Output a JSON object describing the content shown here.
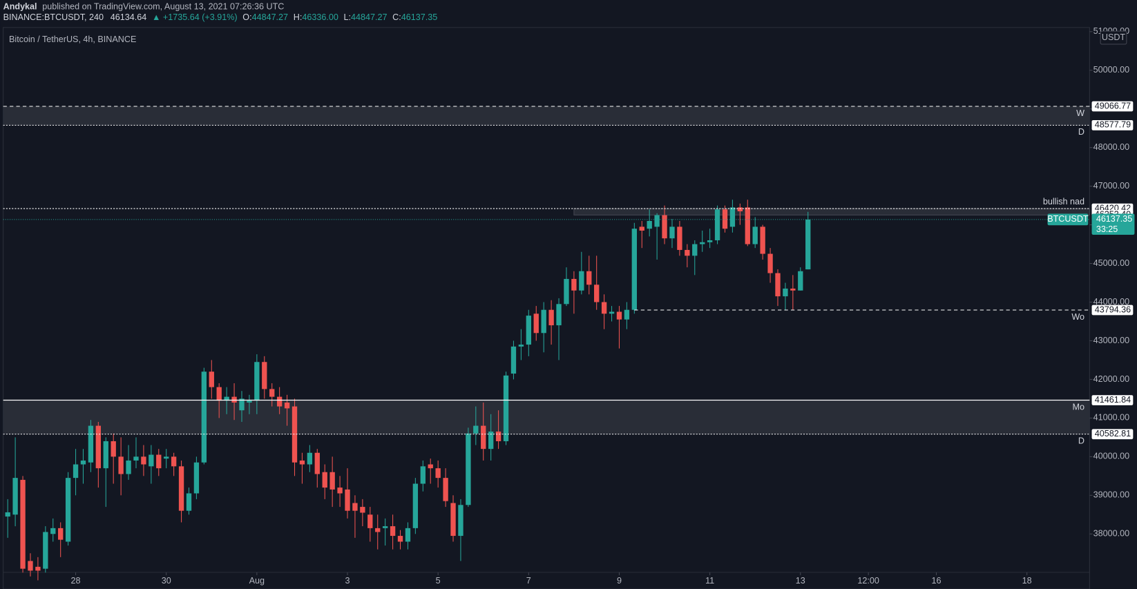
{
  "header": {
    "author": "Andykal",
    "published": "published on TradingView.com, August 13, 2021 07:26:36 UTC",
    "symbol": "BINANCE:BTCUSDT, 240",
    "last": "46134.64",
    "change": "▲ +1735.64 (+3.91%)",
    "o_label": "O:",
    "o": "44847.27",
    "h_label": "H:",
    "h": "46336.00",
    "l_label": "L:",
    "l": "44847.27",
    "c_label": "C:",
    "c": "46137.35"
  },
  "chart_data": {
    "type": "candlestick",
    "title": "Bitcoin / TetherUS, 4h, BINANCE",
    "currency": "USDT",
    "up_color": "#26a69a",
    "down_color": "#ef5350",
    "xlim": [
      -0.6,
      143.3
    ],
    "xticks": [
      {
        "value": 9,
        "label": "28"
      },
      {
        "value": 21,
        "label": "30"
      },
      {
        "value": 33,
        "label": "Aug"
      },
      {
        "value": 45,
        "label": "3"
      },
      {
        "value": 57,
        "label": "5"
      },
      {
        "value": 69,
        "label": "7"
      },
      {
        "value": 81,
        "label": "9"
      },
      {
        "value": 93,
        "label": "11"
      },
      {
        "value": 105,
        "label": "13"
      },
      {
        "value": 114,
        "label": "12:00"
      },
      {
        "value": 123,
        "label": "16"
      },
      {
        "value": 135,
        "label": "18"
      }
    ],
    "ylim": [
      36575,
      51106
    ],
    "yticks": [
      {
        "value": 38000,
        "label": "38000.00"
      },
      {
        "value": 39000,
        "label": "39000.00"
      },
      {
        "value": 40000,
        "label": "40000.00"
      },
      {
        "value": 41000,
        "label": "41000.00"
      },
      {
        "value": 42000,
        "label": "42000.00"
      },
      {
        "value": 43000,
        "label": "43000.00"
      },
      {
        "value": 44000,
        "label": "44000.00"
      },
      {
        "value": 45000,
        "label": "45000.00"
      },
      {
        "value": 46000,
        "label": "46000.00"
      },
      {
        "value": 47000,
        "label": "47000.00"
      },
      {
        "value": 48000,
        "label": "48000.00"
      },
      {
        "value": 49000,
        "label": "49000.00"
      },
      {
        "value": 50000,
        "label": "50000.00"
      },
      {
        "value": 51000,
        "label": "51000.00"
      }
    ],
    "levels": [
      {
        "value": 49066.77,
        "label": "49066.77",
        "note": "W",
        "style": "dashed",
        "zone_to_next": true
      },
      {
        "value": 48577.79,
        "label": "48577.79",
        "note": "D",
        "style": "dotted"
      },
      {
        "value": 46420.42,
        "label": "46420.42",
        "note": "bullish nad",
        "note_side": "above",
        "style": "dotted",
        "zone_to_next": true,
        "zone_start": 75
      },
      {
        "value": 46253.4,
        "label": "46253.40",
        "style": "none"
      },
      {
        "value": 43794.36,
        "label": "43794.36",
        "note": "Wo",
        "style": "dashed",
        "start": 83
      },
      {
        "value": 41461.84,
        "label": "41461.84",
        "note": "Mo",
        "style": "solid",
        "zone_to_next": true
      },
      {
        "value": 40582.81,
        "label": "40582.81",
        "note": "D",
        "style": "dotted"
      }
    ],
    "last_price": {
      "name": "BTCUSDT",
      "value": 46137.35,
      "label": "46137.35",
      "countdown": "33:25"
    },
    "candles": [
      {
        "o": 38450,
        "h": 38900,
        "l": 37900,
        "c": 38560
      },
      {
        "o": 38500,
        "h": 40500,
        "l": 38200,
        "c": 39450
      },
      {
        "o": 39400,
        "h": 39500,
        "l": 37000,
        "c": 37100
      },
      {
        "o": 37300,
        "h": 37500,
        "l": 36900,
        "c": 37050
      },
      {
        "o": 37150,
        "h": 37400,
        "l": 36800,
        "c": 37050
      },
      {
        "o": 37100,
        "h": 38200,
        "l": 37000,
        "c": 38050
      },
      {
        "o": 38000,
        "h": 38400,
        "l": 37800,
        "c": 38150
      },
      {
        "o": 38150,
        "h": 38300,
        "l": 37400,
        "c": 37850
      },
      {
        "o": 37800,
        "h": 39600,
        "l": 37700,
        "c": 39450
      },
      {
        "o": 39450,
        "h": 40200,
        "l": 39000,
        "c": 39800
      },
      {
        "o": 39800,
        "h": 40200,
        "l": 39300,
        "c": 39900
      },
      {
        "o": 39850,
        "h": 40950,
        "l": 39600,
        "c": 40800
      },
      {
        "o": 40800,
        "h": 40900,
        "l": 39200,
        "c": 39700
      },
      {
        "o": 39700,
        "h": 40500,
        "l": 38700,
        "c": 40400
      },
      {
        "o": 40400,
        "h": 40600,
        "l": 39300,
        "c": 40000
      },
      {
        "o": 40000,
        "h": 40500,
        "l": 39000,
        "c": 39550
      },
      {
        "o": 39550,
        "h": 40300,
        "l": 39400,
        "c": 39900
      },
      {
        "o": 39900,
        "h": 40500,
        "l": 39700,
        "c": 40000
      },
      {
        "o": 40000,
        "h": 40300,
        "l": 39500,
        "c": 39800
      },
      {
        "o": 39750,
        "h": 40300,
        "l": 39300,
        "c": 40050
      },
      {
        "o": 40050,
        "h": 40200,
        "l": 39500,
        "c": 39700
      },
      {
        "o": 39950,
        "h": 40200,
        "l": 39700,
        "c": 40000
      },
      {
        "o": 40000,
        "h": 40100,
        "l": 39500,
        "c": 39750
      },
      {
        "o": 39750,
        "h": 39900,
        "l": 38300,
        "c": 38600
      },
      {
        "o": 38600,
        "h": 39200,
        "l": 38500,
        "c": 39050
      },
      {
        "o": 39050,
        "h": 40000,
        "l": 38900,
        "c": 39850
      },
      {
        "o": 39850,
        "h": 42300,
        "l": 39800,
        "c": 42200
      },
      {
        "o": 42200,
        "h": 42500,
        "l": 41500,
        "c": 41800
      },
      {
        "o": 41800,
        "h": 41900,
        "l": 41000,
        "c": 41450
      },
      {
        "o": 41450,
        "h": 41800,
        "l": 41100,
        "c": 41550
      },
      {
        "o": 41550,
        "h": 41900,
        "l": 40950,
        "c": 41400
      },
      {
        "o": 41200,
        "h": 41700,
        "l": 40900,
        "c": 41500
      },
      {
        "o": 41400,
        "h": 41600,
        "l": 41100,
        "c": 41450
      },
      {
        "o": 41450,
        "h": 42650,
        "l": 41100,
        "c": 42450
      },
      {
        "o": 42450,
        "h": 42600,
        "l": 41500,
        "c": 41750
      },
      {
        "o": 41750,
        "h": 41900,
        "l": 41300,
        "c": 41550
      },
      {
        "o": 41550,
        "h": 41800,
        "l": 41100,
        "c": 41300
      },
      {
        "o": 41400,
        "h": 41600,
        "l": 40800,
        "c": 41250
      },
      {
        "o": 41300,
        "h": 41500,
        "l": 39500,
        "c": 39850
      },
      {
        "o": 39900,
        "h": 40100,
        "l": 39300,
        "c": 39800
      },
      {
        "o": 39800,
        "h": 40300,
        "l": 39600,
        "c": 40100
      },
      {
        "o": 40100,
        "h": 40200,
        "l": 39200,
        "c": 39550
      },
      {
        "o": 39600,
        "h": 39800,
        "l": 38900,
        "c": 39200
      },
      {
        "o": 39600,
        "h": 40000,
        "l": 38700,
        "c": 39150
      },
      {
        "o": 39200,
        "h": 39500,
        "l": 38700,
        "c": 39050
      },
      {
        "o": 39150,
        "h": 39700,
        "l": 38400,
        "c": 38600
      },
      {
        "o": 38800,
        "h": 39000,
        "l": 37900,
        "c": 38600
      },
      {
        "o": 38700,
        "h": 38900,
        "l": 38200,
        "c": 38550
      },
      {
        "o": 38500,
        "h": 38700,
        "l": 37800,
        "c": 38150
      },
      {
        "o": 38150,
        "h": 38500,
        "l": 37600,
        "c": 38050
      },
      {
        "o": 38150,
        "h": 38400,
        "l": 37700,
        "c": 38200
      },
      {
        "o": 38200,
        "h": 38500,
        "l": 37600,
        "c": 37950
      },
      {
        "o": 37950,
        "h": 38100,
        "l": 37600,
        "c": 37800
      },
      {
        "o": 37800,
        "h": 38300,
        "l": 37600,
        "c": 38150
      },
      {
        "o": 38150,
        "h": 39450,
        "l": 38000,
        "c": 39300
      },
      {
        "o": 39300,
        "h": 39900,
        "l": 39100,
        "c": 39750
      },
      {
        "o": 39800,
        "h": 39950,
        "l": 39300,
        "c": 39700
      },
      {
        "o": 39700,
        "h": 39900,
        "l": 39200,
        "c": 39450
      },
      {
        "o": 39450,
        "h": 39700,
        "l": 38700,
        "c": 38850
      },
      {
        "o": 38800,
        "h": 39000,
        "l": 37800,
        "c": 37950
      },
      {
        "o": 37950,
        "h": 38900,
        "l": 37300,
        "c": 38750
      },
      {
        "o": 38750,
        "h": 40750,
        "l": 38700,
        "c": 40600
      },
      {
        "o": 40600,
        "h": 41300,
        "l": 40300,
        "c": 40800
      },
      {
        "o": 40800,
        "h": 41400,
        "l": 39900,
        "c": 40200
      },
      {
        "o": 40200,
        "h": 41100,
        "l": 39900,
        "c": 40650
      },
      {
        "o": 40650,
        "h": 41200,
        "l": 40200,
        "c": 40400
      },
      {
        "o": 40400,
        "h": 42200,
        "l": 40300,
        "c": 42100
      },
      {
        "o": 42150,
        "h": 43000,
        "l": 42000,
        "c": 42850
      },
      {
        "o": 42850,
        "h": 43300,
        "l": 42500,
        "c": 42900
      },
      {
        "o": 42900,
        "h": 43800,
        "l": 42600,
        "c": 43650
      },
      {
        "o": 43700,
        "h": 43900,
        "l": 43000,
        "c": 43200
      },
      {
        "o": 43200,
        "h": 44000,
        "l": 42700,
        "c": 43800
      },
      {
        "o": 43800,
        "h": 44050,
        "l": 42900,
        "c": 43400
      },
      {
        "o": 43400,
        "h": 44100,
        "l": 42500,
        "c": 43950
      },
      {
        "o": 43950,
        "h": 44900,
        "l": 43900,
        "c": 44600
      },
      {
        "o": 44600,
        "h": 44800,
        "l": 43700,
        "c": 44300
      },
      {
        "o": 44300,
        "h": 45300,
        "l": 44200,
        "c": 44800
      },
      {
        "o": 44800,
        "h": 45200,
        "l": 44200,
        "c": 44450
      },
      {
        "o": 44450,
        "h": 45200,
        "l": 43800,
        "c": 44000
      },
      {
        "o": 44000,
        "h": 44200,
        "l": 43300,
        "c": 43700
      },
      {
        "o": 43700,
        "h": 43900,
        "l": 43500,
        "c": 43750
      },
      {
        "o": 43750,
        "h": 43900,
        "l": 42800,
        "c": 43550
      },
      {
        "o": 43550,
        "h": 44000,
        "l": 43300,
        "c": 43800
      },
      {
        "o": 43800,
        "h": 46050,
        "l": 43700,
        "c": 45900
      },
      {
        "o": 45950,
        "h": 46100,
        "l": 45400,
        "c": 45850
      },
      {
        "o": 45900,
        "h": 46400,
        "l": 45700,
        "c": 46100
      },
      {
        "o": 45950,
        "h": 46300,
        "l": 45100,
        "c": 46250
      },
      {
        "o": 46250,
        "h": 46500,
        "l": 45500,
        "c": 45650
      },
      {
        "o": 45650,
        "h": 46150,
        "l": 45400,
        "c": 45950
      },
      {
        "o": 45950,
        "h": 46100,
        "l": 45200,
        "c": 45350
      },
      {
        "o": 45350,
        "h": 45500,
        "l": 44900,
        "c": 45200
      },
      {
        "o": 45200,
        "h": 45600,
        "l": 44700,
        "c": 45500
      },
      {
        "o": 45500,
        "h": 45850,
        "l": 45300,
        "c": 45550
      },
      {
        "o": 45550,
        "h": 45900,
        "l": 45400,
        "c": 45600
      },
      {
        "o": 45600,
        "h": 46500,
        "l": 45500,
        "c": 46400
      },
      {
        "o": 46400,
        "h": 46500,
        "l": 45800,
        "c": 45900
      },
      {
        "o": 45950,
        "h": 46650,
        "l": 45800,
        "c": 46450
      },
      {
        "o": 46450,
        "h": 46550,
        "l": 46000,
        "c": 46350
      },
      {
        "o": 46450,
        "h": 46650,
        "l": 45450,
        "c": 45500
      },
      {
        "o": 45500,
        "h": 46200,
        "l": 45400,
        "c": 45950
      },
      {
        "o": 45950,
        "h": 46000,
        "l": 45100,
        "c": 45250
      },
      {
        "o": 45250,
        "h": 45400,
        "l": 44500,
        "c": 44750
      },
      {
        "o": 44750,
        "h": 44850,
        "l": 43900,
        "c": 44150
      },
      {
        "o": 44150,
        "h": 44500,
        "l": 43800,
        "c": 44350
      },
      {
        "o": 44350,
        "h": 44700,
        "l": 43800,
        "c": 44300
      },
      {
        "o": 44300,
        "h": 44900,
        "l": 44300,
        "c": 44800
      },
      {
        "o": 44847.27,
        "h": 46336,
        "l": 44847.27,
        "c": 46137.35
      }
    ]
  }
}
